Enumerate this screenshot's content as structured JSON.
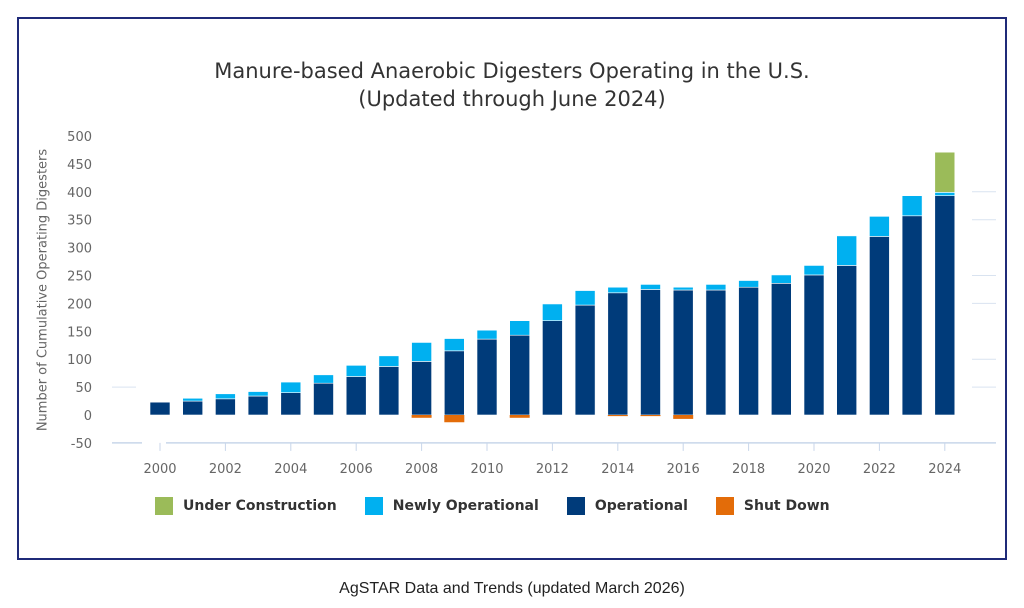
{
  "caption": "AgSTAR Data and Trends (updated March 2026)",
  "colors": {
    "under_construction": "#9bbb59",
    "newly_operational": "#00b0f0",
    "operational": "#003b7a",
    "shut_down": "#e36c09",
    "frame": "#1f2a78",
    "grid": "#d9e3f0"
  },
  "chart_data": {
    "type": "bar",
    "stacked": true,
    "title": "Manure-based Anaerobic Digesters Operating in the U.S.",
    "subtitle": "(Updated through June 2024)",
    "xlabel": "",
    "ylabel": "Number of Cumulative Operating Digesters",
    "ylim": [
      -50,
      500
    ],
    "yticks": [
      "500",
      "450",
      "400",
      "350",
      "300",
      "250",
      "200",
      "150",
      "100",
      "50",
      "0",
      "-50"
    ],
    "ytick_values": [
      500,
      450,
      400,
      350,
      300,
      250,
      200,
      150,
      100,
      50,
      0,
      -50
    ],
    "categories": [
      "2000",
      "2001",
      "2002",
      "2003",
      "2004",
      "2005",
      "2006",
      "2007",
      "2008",
      "2009",
      "2010",
      "2011",
      "2012",
      "2013",
      "2014",
      "2015",
      "2016",
      "2017",
      "2018",
      "2019",
      "2020",
      "2021",
      "2022",
      "2023",
      "2024"
    ],
    "xtick_labels": [
      "2000",
      "2002",
      "2004",
      "2006",
      "2008",
      "2010",
      "2012",
      "2014",
      "2016",
      "2018",
      "2020",
      "2022",
      "2024"
    ],
    "legend_position": "bottom",
    "series": [
      {
        "name": "Under Construction",
        "key": "under_construction",
        "values": [
          0,
          0,
          0,
          0,
          0,
          0,
          0,
          0,
          0,
          0,
          0,
          0,
          0,
          0,
          0,
          0,
          0,
          0,
          0,
          0,
          0,
          0,
          0,
          0,
          72
        ]
      },
      {
        "name": "Newly Operational",
        "key": "newly_operational",
        "values": [
          0,
          5,
          9,
          8,
          19,
          15,
          20,
          19,
          34,
          22,
          16,
          26,
          30,
          26,
          10,
          9,
          5,
          10,
          12,
          15,
          17,
          53,
          36,
          36,
          6
        ]
      },
      {
        "name": "Operational",
        "key": "operational",
        "values": [
          23,
          25,
          29,
          34,
          40,
          57,
          69,
          87,
          96,
          115,
          136,
          143,
          169,
          197,
          219,
          225,
          224,
          224,
          229,
          236,
          251,
          268,
          320,
          357,
          393
        ]
      },
      {
        "name": "Shut Down",
        "key": "shut_down",
        "values": [
          0,
          0,
          0,
          0,
          0,
          0,
          0,
          0,
          -5,
          -13,
          0,
          -5,
          0,
          0,
          -2,
          -2,
          -7,
          0,
          0,
          0,
          0,
          0,
          0,
          0,
          0
        ]
      }
    ]
  }
}
